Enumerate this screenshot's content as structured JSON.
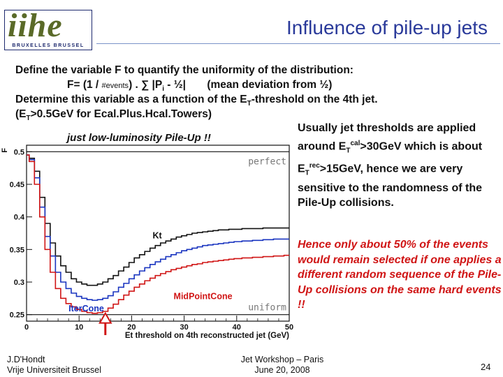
{
  "header": {
    "logo_text": "iihe",
    "logo_subtitle": "BRUXELLES BRUSSEL",
    "title": "Influence of pile-up jets"
  },
  "definition": {
    "line1": "Define the variable F to quantify the uniformity of the distribution:",
    "line2_prefix": "F= (1 / ",
    "line2_events": "#events",
    "line2_mid": ") . ∑ |P",
    "line2_sub": "i",
    "line2_suffix": " - ½|",
    "line2_note": "(mean deviation from ½)",
    "line3_a": "Determine this variable as a function of the E",
    "line3_sub": "T",
    "line3_b": "-threshold on the 4th jet.",
    "line4_a": "(E",
    "line4_sub": "T",
    "line4_b": ">0.5GeV for Ecal.Plus.Hcal.Towers)"
  },
  "plot_note": "just low-luminosity Pile-Up !!",
  "right_text": {
    "p1_a": "Usually jet thresholds are applied around E",
    "p1_sub1": "T",
    "p1_sup1": "cal",
    "p1_b": ">30GeV which is about E",
    "p1_sub2": "T",
    "p1_sup2": "rec",
    "p1_c": ">15GeV, hence we are very sensitive to the randomness of the Pile-Up collisions.",
    "p2": "Hence only about 50% of the events would remain selected if one applies a different random sequence of the Pile-Up collisions on the same hard events !!"
  },
  "footer": {
    "author": "J.D'Hondt",
    "institution": "Vrije Universiteit Brussel",
    "event": "Jet Workshop – Paris",
    "date": "June 20, 2008",
    "page": "24"
  },
  "chart_data": {
    "type": "line",
    "title": "",
    "xlabel": "Et threshold on 4th reconstructed jet (GeV)",
    "ylabel": "F",
    "xlim": [
      0,
      50
    ],
    "ylim": [
      0.24,
      0.51
    ],
    "x_ticks": [
      0,
      10,
      20,
      30,
      40,
      50
    ],
    "y_ticks": [
      0.25,
      0.3,
      0.35,
      0.4,
      0.45,
      0.5
    ],
    "x_tick_labels": [
      "0",
      "10",
      "20",
      "30",
      "40",
      "50"
    ],
    "y_tick_labels": [
      "0.25",
      "0.3",
      "0.35",
      "0.4",
      "0.45",
      "0.5"
    ],
    "reference_lines": [
      {
        "label": "perfect",
        "y": 0.5
      },
      {
        "label": "uniform",
        "y": 0.25
      }
    ],
    "series": [
      {
        "name": "Kt",
        "color": "#111111",
        "x": [
          0,
          1,
          2,
          3,
          4,
          5,
          6,
          7,
          8,
          9,
          10,
          11,
          12,
          13,
          14,
          15,
          16,
          17,
          18,
          19,
          20,
          21,
          22,
          23,
          24,
          25,
          26,
          27,
          28,
          29,
          30,
          31,
          32,
          33,
          34,
          35,
          36,
          37,
          38,
          39,
          40,
          42,
          44,
          46,
          48,
          50
        ],
        "y": [
          0.495,
          0.49,
          0.47,
          0.43,
          0.39,
          0.36,
          0.34,
          0.325,
          0.315,
          0.305,
          0.3,
          0.297,
          0.295,
          0.295,
          0.297,
          0.3,
          0.305,
          0.31,
          0.317,
          0.323,
          0.33,
          0.337,
          0.342,
          0.347,
          0.352,
          0.356,
          0.36,
          0.363,
          0.366,
          0.369,
          0.371,
          0.373,
          0.375,
          0.376,
          0.377,
          0.378,
          0.379,
          0.38,
          0.38,
          0.381,
          0.381,
          0.382,
          0.382,
          0.383,
          0.383,
          0.383
        ]
      },
      {
        "name": "IterCone",
        "color": "#1a35c0",
        "x": [
          0,
          1,
          2,
          3,
          4,
          5,
          6,
          7,
          8,
          9,
          10,
          11,
          12,
          13,
          14,
          15,
          16,
          17,
          18,
          19,
          20,
          21,
          22,
          23,
          24,
          25,
          26,
          27,
          28,
          29,
          30,
          31,
          32,
          33,
          34,
          35,
          36,
          37,
          38,
          39,
          40,
          42,
          44,
          46,
          48,
          50
        ],
        "y": [
          0.495,
          0.488,
          0.46,
          0.415,
          0.37,
          0.34,
          0.315,
          0.3,
          0.29,
          0.283,
          0.278,
          0.275,
          0.273,
          0.272,
          0.273,
          0.275,
          0.279,
          0.285,
          0.292,
          0.298,
          0.305,
          0.311,
          0.317,
          0.322,
          0.327,
          0.331,
          0.335,
          0.339,
          0.342,
          0.345,
          0.348,
          0.35,
          0.352,
          0.354,
          0.356,
          0.357,
          0.358,
          0.359,
          0.36,
          0.361,
          0.362,
          0.363,
          0.364,
          0.365,
          0.366,
          0.366
        ]
      },
      {
        "name": "MidPointCone",
        "color": "#d01515",
        "x": [
          0,
          1,
          2,
          3,
          4,
          5,
          6,
          7,
          8,
          9,
          10,
          11,
          12,
          13,
          14,
          15,
          16,
          17,
          18,
          19,
          20,
          21,
          22,
          23,
          24,
          25,
          26,
          27,
          28,
          29,
          30,
          31,
          32,
          33,
          34,
          35,
          36,
          37,
          38,
          39,
          40,
          42,
          44,
          46,
          48,
          50
        ],
        "y": [
          0.495,
          0.485,
          0.45,
          0.4,
          0.35,
          0.315,
          0.29,
          0.275,
          0.267,
          0.262,
          0.258,
          0.255,
          0.253,
          0.252,
          0.253,
          0.255,
          0.26,
          0.266,
          0.273,
          0.28,
          0.286,
          0.292,
          0.297,
          0.302,
          0.306,
          0.31,
          0.313,
          0.316,
          0.319,
          0.321,
          0.323,
          0.325,
          0.327,
          0.328,
          0.33,
          0.331,
          0.332,
          0.333,
          0.334,
          0.335,
          0.336,
          0.337,
          0.338,
          0.339,
          0.34,
          0.341
        ]
      }
    ],
    "annotation_arrow": {
      "x": 15,
      "y": 0.25
    },
    "colors": {
      "kt": "#111111",
      "itercone": "#1a35c0",
      "midpointcone": "#d01515",
      "arrow": "#d01515"
    }
  }
}
